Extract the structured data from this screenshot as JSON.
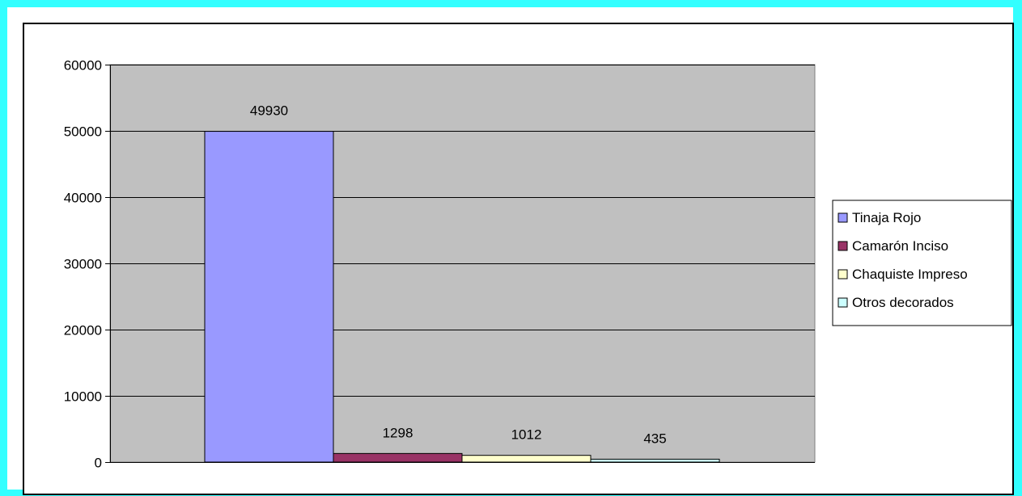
{
  "chart_data": {
    "type": "bar",
    "series": [
      {
        "name": "Tinaja Rojo",
        "value": 49930,
        "color": "#9999ff"
      },
      {
        "name": "Camarón Inciso",
        "value": 1298,
        "color": "#993366"
      },
      {
        "name": "Chaquiste Impreso",
        "value": 1012,
        "color": "#ffffcc"
      },
      {
        "name": "Otros decorados",
        "value": 435,
        "color": "#ccffff"
      }
    ],
    "data_labels": [
      "49930",
      "1298",
      "1012",
      "435"
    ],
    "y_ticks": [
      "0",
      "10000",
      "20000",
      "30000",
      "40000",
      "50000",
      "60000"
    ],
    "ylim": [
      0,
      60000
    ],
    "title": "",
    "xlabel": "",
    "ylabel": "",
    "grid": true,
    "legend_position": "right",
    "plot_background": "#c0c0c0",
    "frame_color": "#33ffff"
  }
}
